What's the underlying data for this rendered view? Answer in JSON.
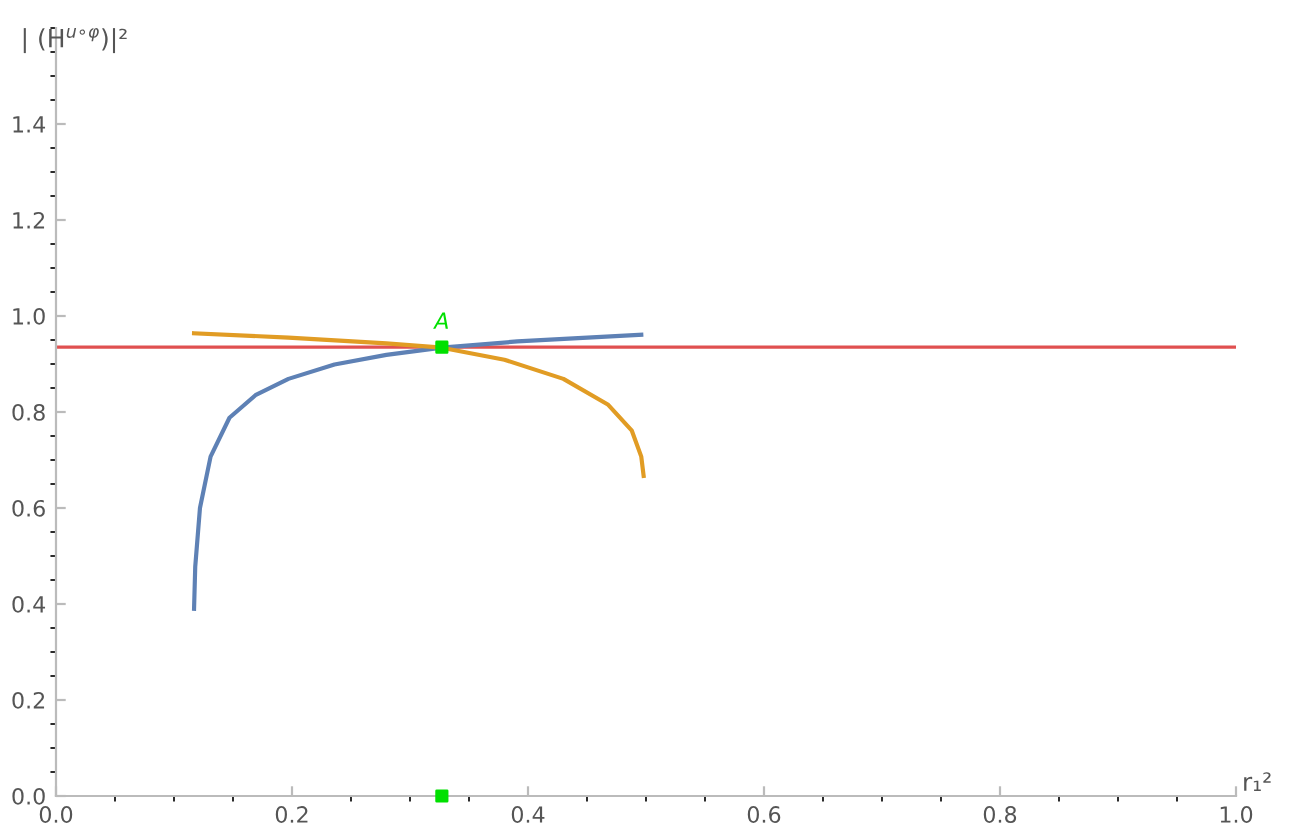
{
  "chart_data": {
    "type": "line",
    "xlabel": "r₁²",
    "ylabel": "| (H$^{u∘φ}$)|²",
    "xlim": [
      0,
      1.0
    ],
    "ylim": [
      0,
      1.6
    ],
    "xticks": [
      {
        "value": 0,
        "label": "0.0"
      },
      0.2,
      0.4,
      0.6,
      0.8,
      {
        "value": 1,
        "label": "1.0"
      }
    ],
    "yticks": [
      {
        "value": 0,
        "label": "0.0"
      },
      0.2,
      0.4,
      0.6,
      0.8,
      {
        "value": 1,
        "label": "1.0"
      },
      1.2,
      1.4
    ],
    "series": [
      {
        "color": "#5e81b5",
        "x": [
          0.117,
          0.118,
          0.122,
          0.131,
          0.147,
          0.169,
          0.197,
          0.236,
          0.28,
          0.327,
          0.391,
          0.496
        ],
        "values": [
          0.39,
          0.478,
          0.6,
          0.707,
          0.788,
          0.835,
          0.869,
          0.899,
          0.919,
          0.934,
          0.947,
          0.961
        ]
      },
      {
        "color": "#e19c24",
        "x": [
          0.117,
          0.197,
          0.28,
          0.327,
          0.38,
          0.43,
          0.468,
          0.488,
          0.496,
          0.498
        ],
        "values": [
          0.964,
          0.955,
          0.943,
          0.934,
          0.909,
          0.869,
          0.815,
          0.761,
          0.707,
          0.667
        ]
      },
      {
        "type": "scatter",
        "marker": "square",
        "color": "#00e000",
        "x": [
          0.327,
          0.327
        ],
        "values": [
          0.935,
          0
        ]
      }
    ],
    "ref_lines": [
      {
        "axis": "y",
        "value": 0.935,
        "color": "#e05050"
      }
    ],
    "annotations": [
      {
        "text": "A",
        "x": 0.327,
        "y": 0.935
      }
    ],
    "grid": false,
    "marker": "none",
    "line_style": "solid"
  }
}
